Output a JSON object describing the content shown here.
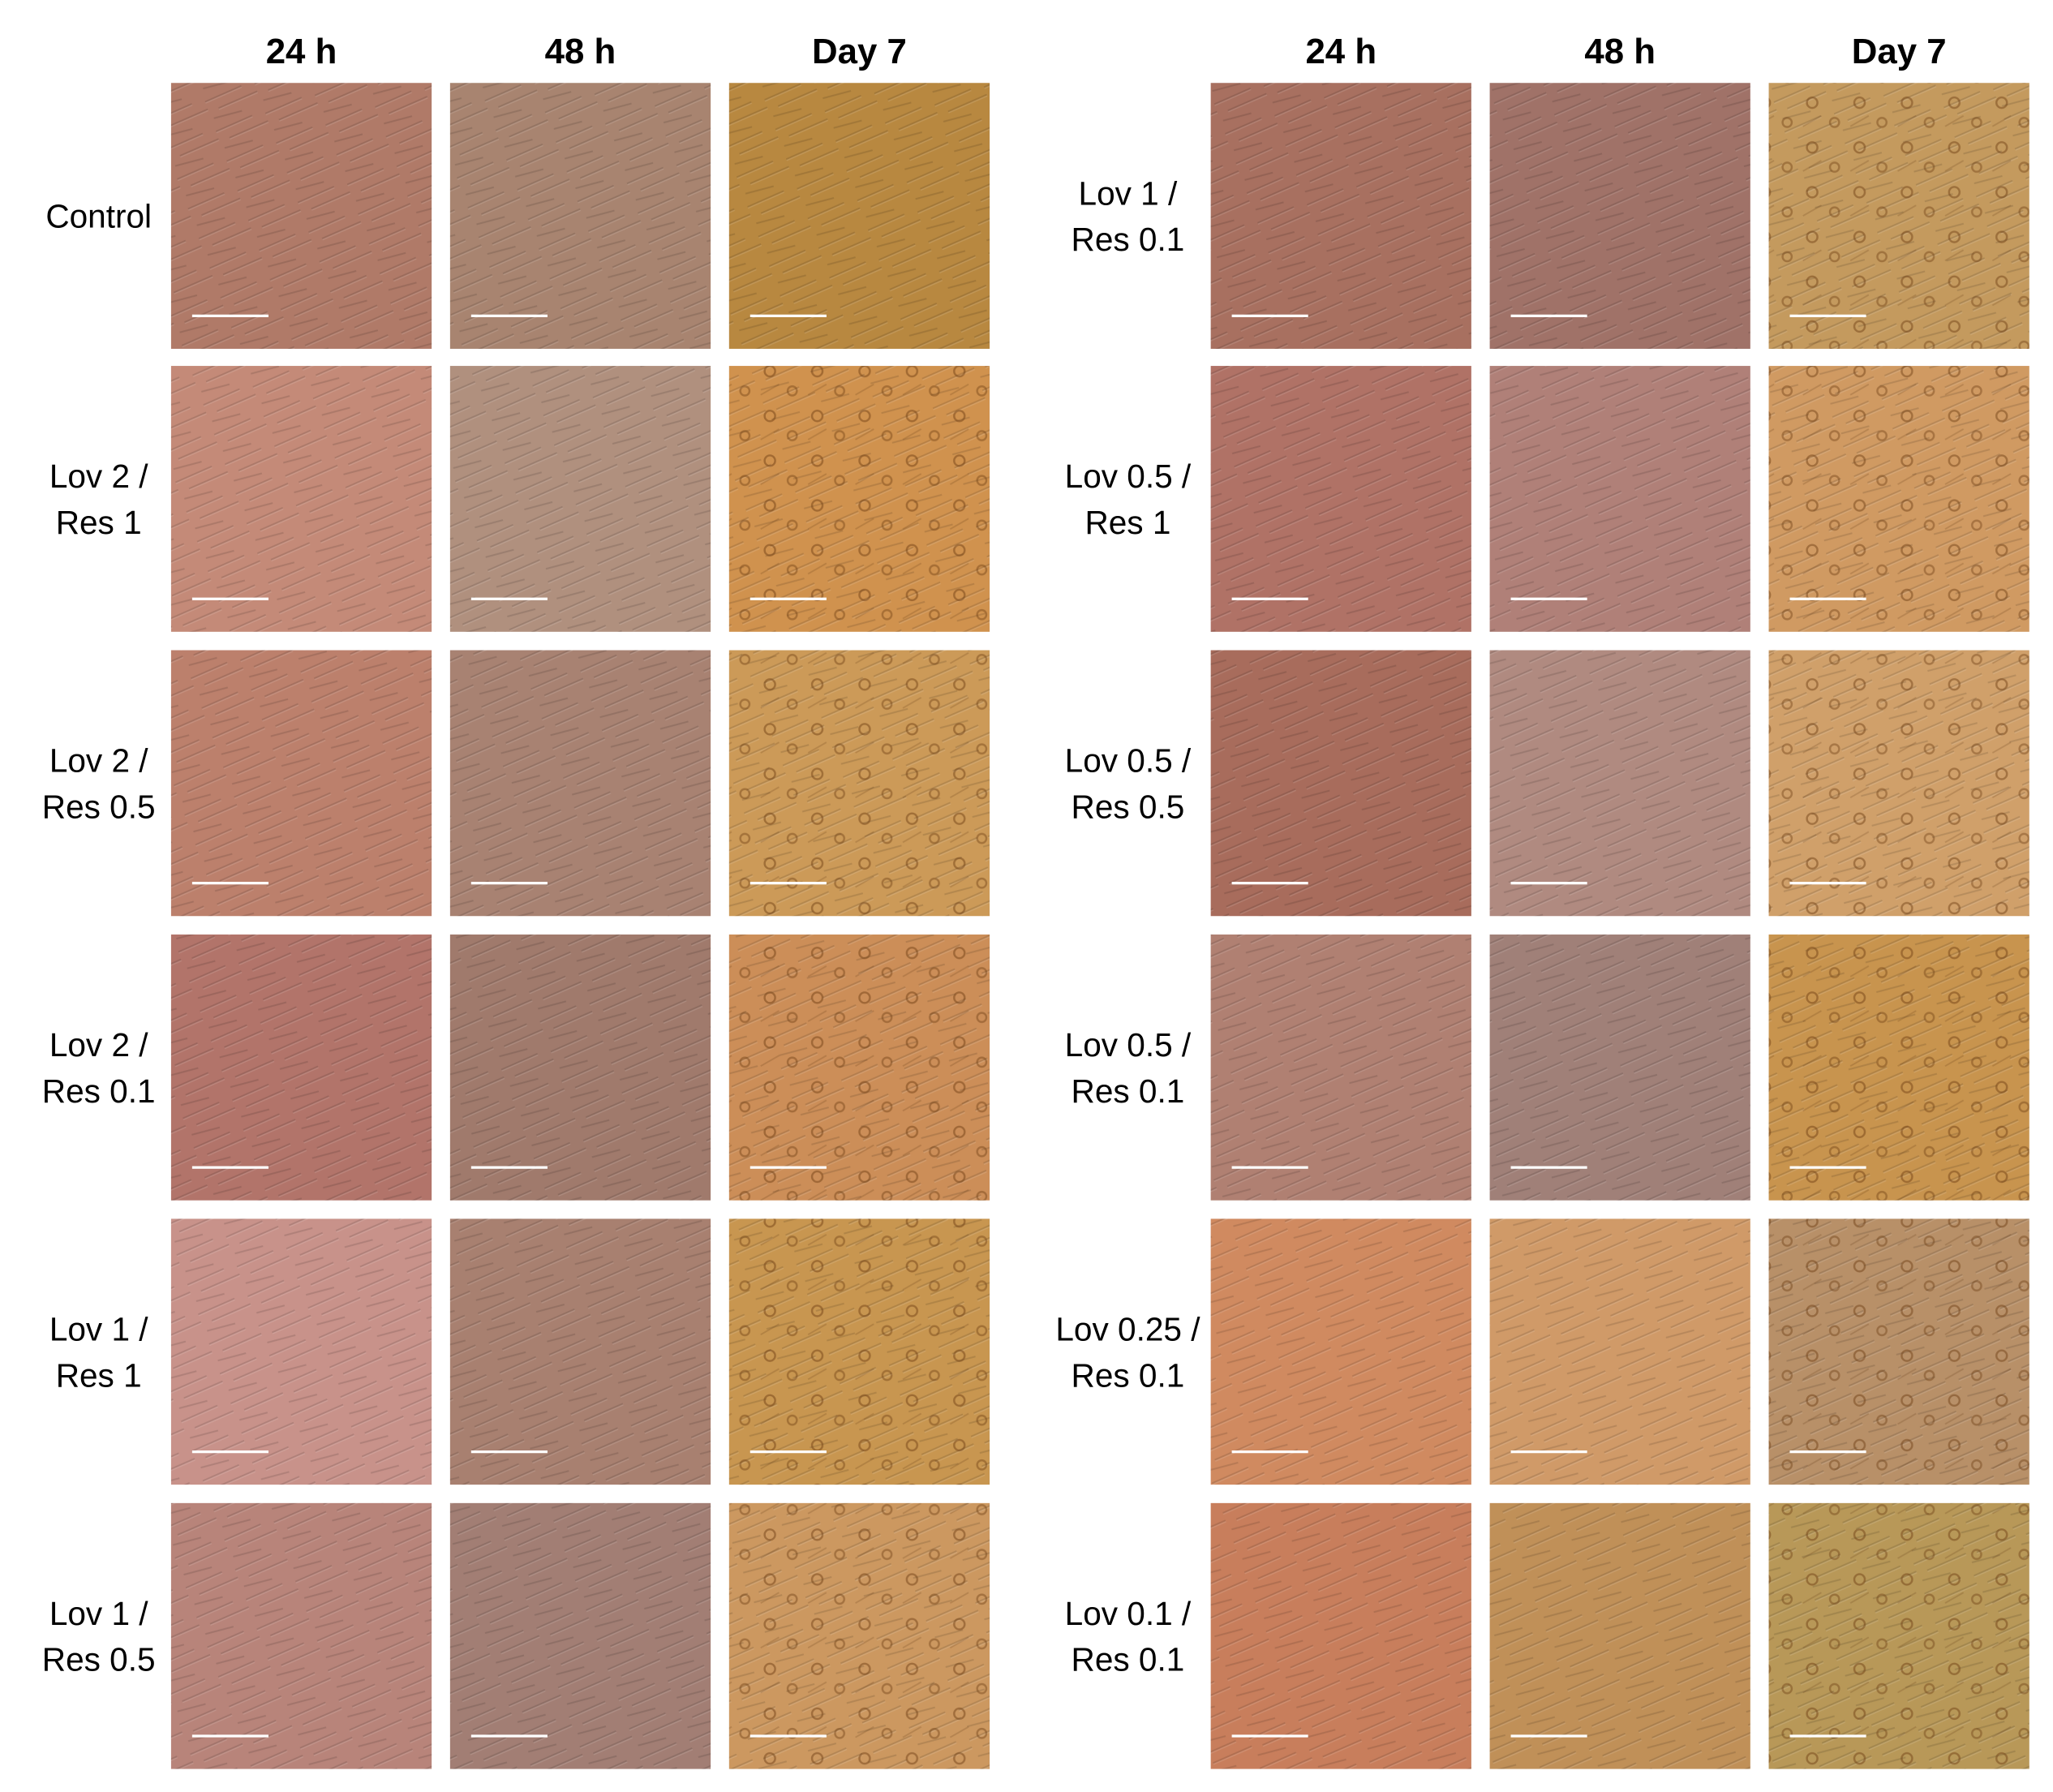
{
  "panels": [
    {
      "columns": [
        "24 h",
        "48 h",
        "Day 7"
      ],
      "rows": [
        {
          "label": [
            "Control"
          ]
        },
        {
          "label": [
            "Lov 2 /",
            "Res 1"
          ]
        },
        {
          "label": [
            "Lov 2 /",
            "Res 0.5"
          ]
        },
        {
          "label": [
            "Lov 2 /",
            "Res 0.1"
          ]
        },
        {
          "label": [
            "Lov 1 /",
            "Res 1"
          ]
        },
        {
          "label": [
            "Lov 1 /",
            "Res 0.5"
          ]
        }
      ]
    },
    {
      "columns": [
        "24 h",
        "48 h",
        "Day 7"
      ],
      "rows": [
        {
          "label": [
            "Lov 1 /",
            "Res 0.1"
          ]
        },
        {
          "label": [
            "Lov 0.5 /",
            "Res 1"
          ]
        },
        {
          "label": [
            "Lov 0.5 /",
            "Res 0.5"
          ]
        },
        {
          "label": [
            "Lov 0.5 /",
            "Res 0.1"
          ]
        },
        {
          "label": [
            "Lov 0.25 /",
            "Res 0.1"
          ]
        },
        {
          "label": [
            "Lov 0.1 /",
            "Res 0.1"
          ]
        }
      ]
    }
  ]
}
